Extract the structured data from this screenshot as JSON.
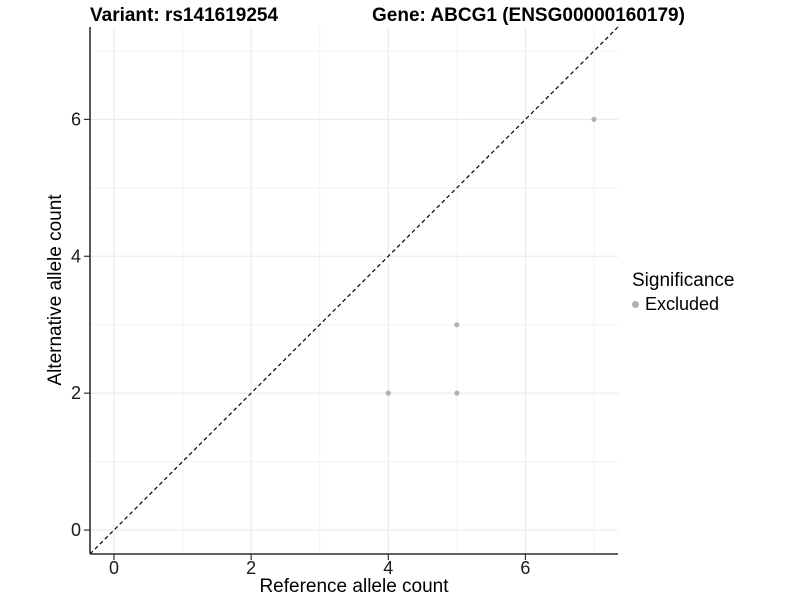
{
  "chart_data": {
    "type": "scatter",
    "title_left": "Variant: rs141619254",
    "title_right": "Gene: ABCG1 (ENSG00000160179)",
    "xlabel": "Reference allele count",
    "ylabel": "Alternative allele count",
    "xlim": [
      -0.35,
      7.35
    ],
    "ylim": [
      -0.35,
      7.35
    ],
    "x_ticks": [
      0,
      2,
      4,
      6
    ],
    "y_ticks": [
      0,
      2,
      4,
      6
    ],
    "x_tick_labels": [
      "0",
      "2",
      "4",
      "6"
    ],
    "y_tick_labels": [
      "0",
      "2",
      "4",
      "6"
    ],
    "minor_grid_x": [
      1,
      3,
      5,
      7
    ],
    "minor_grid_y": [
      1,
      3,
      5,
      7
    ],
    "grid": "on",
    "reference_line": {
      "type": "identity",
      "from": [
        -0.35,
        -0.35
      ],
      "to": [
        7.35,
        7.35
      ],
      "style": "dashed",
      "color": "#000000"
    },
    "series": [
      {
        "name": "Excluded",
        "color": "#b2b2b2",
        "points": [
          {
            "x": 4,
            "y": 2
          },
          {
            "x": 5,
            "y": 2
          },
          {
            "x": 5,
            "y": 3
          },
          {
            "x": 7,
            "y": 6
          }
        ]
      }
    ],
    "legend": {
      "title": "Significance",
      "position": "right",
      "entries": [
        {
          "label": "Excluded",
          "color": "#b2b2b2"
        }
      ]
    },
    "colors": {
      "major_grid": "#e8e8e8",
      "minor_grid": "#f3f3f3",
      "axis_line": "#2f2f2f",
      "tick_mark": "#2f2f2f",
      "tick_label": "#1a1a1a",
      "point": "#b2b2b2",
      "background": "#ffffff"
    }
  }
}
